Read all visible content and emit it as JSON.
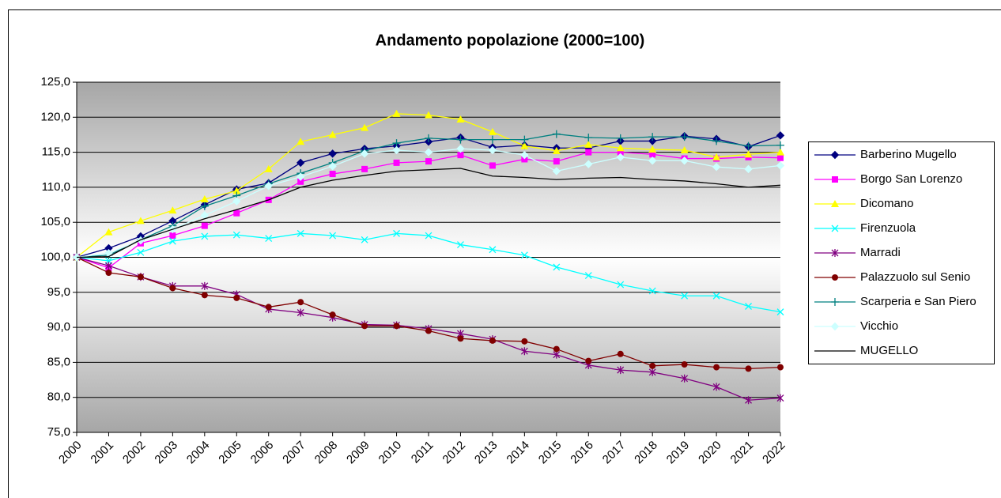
{
  "chart_data": {
    "type": "line",
    "title": "Andamento popolazione (2000=100)",
    "categories": [
      "2000",
      "2001",
      "2002",
      "2003",
      "2004",
      "2005",
      "2006",
      "2007",
      "2008",
      "2009",
      "2010",
      "2011",
      "2012",
      "2013",
      "2014",
      "2015",
      "2016",
      "2017",
      "2018",
      "2019",
      "2020",
      "2021",
      "2022"
    ],
    "ylim": [
      75,
      125
    ],
    "yticks": [
      {
        "value": 75,
        "label": "75,0"
      },
      {
        "value": 80,
        "label": "80,0"
      },
      {
        "value": 85,
        "label": "85,0"
      },
      {
        "value": 90,
        "label": "90,0"
      },
      {
        "value": 95,
        "label": "95,0"
      },
      {
        "value": 100,
        "label": "100,0"
      },
      {
        "value": 105,
        "label": "105,0"
      },
      {
        "value": 110,
        "label": "110,0"
      },
      {
        "value": 115,
        "label": "115,0"
      },
      {
        "value": 120,
        "label": "120,0"
      },
      {
        "value": 125,
        "label": "125,0"
      }
    ],
    "grid": true,
    "legend": "right",
    "series": [
      {
        "name": "Barberino Mugello",
        "color": "#000080",
        "marker": "diamond",
        "values": [
          100,
          101.3,
          103,
          105.2,
          107.5,
          109.7,
          110.6,
          113.5,
          114.8,
          115.5,
          115.9,
          116.5,
          117.1,
          115.7,
          116,
          115.6,
          115.6,
          116.6,
          116.6,
          117.3,
          116.9,
          115.8,
          117.4
        ]
      },
      {
        "name": "Borgo San Lorenzo",
        "color": "#ff00ff",
        "marker": "square",
        "values": [
          100,
          98.5,
          102,
          103.1,
          104.5,
          106.3,
          108.2,
          110.8,
          111.9,
          112.6,
          113.5,
          113.7,
          114.6,
          113.1,
          114,
          113.7,
          115,
          115,
          114.7,
          114.1,
          114.1,
          114.3,
          114.2
        ]
      },
      {
        "name": "Dicomano",
        "color": "#ffff00",
        "marker": "triangle",
        "values": [
          100,
          103.6,
          105.2,
          106.7,
          108.3,
          109.5,
          112.6,
          116.5,
          117.5,
          118.5,
          120.5,
          120.3,
          119.7,
          117.9,
          115.9,
          115.2,
          116.1,
          115.6,
          115.4,
          115.3,
          114.3,
          114.7,
          115
        ]
      },
      {
        "name": "Firenzuola",
        "color": "#00ffff",
        "marker": "x",
        "values": [
          100,
          99.5,
          100.7,
          102.3,
          103,
          103.2,
          102.7,
          103.4,
          103.1,
          102.5,
          103.4,
          103.1,
          101.8,
          101.1,
          100.3,
          98.6,
          97.4,
          96.1,
          95.2,
          94.5,
          94.5,
          93,
          92.2
        ]
      },
      {
        "name": "Marradi",
        "color": "#800080",
        "marker": "star",
        "values": [
          100,
          98.8,
          97.2,
          95.9,
          95.9,
          94.7,
          92.6,
          92.1,
          91.4,
          90.4,
          90.3,
          89.8,
          89.1,
          88.3,
          86.6,
          86.1,
          84.6,
          83.9,
          83.6,
          82.7,
          81.5,
          79.6,
          79.9
        ]
      },
      {
        "name": "Palazzuolo sul Senio",
        "color": "#800000",
        "marker": "circle",
        "values": [
          100,
          97.8,
          97.2,
          95.6,
          94.6,
          94.2,
          92.9,
          93.6,
          91.8,
          90.2,
          90.2,
          89.5,
          88.4,
          88.1,
          88,
          86.9,
          85.2,
          86.2,
          84.5,
          84.7,
          84.3,
          84.1,
          84.3
        ]
      },
      {
        "name": "Scarperia e San Piero",
        "color": "#008080",
        "marker": "plus",
        "values": [
          100,
          100.3,
          102.5,
          104.5,
          107.3,
          108.8,
          110.5,
          112,
          113.5,
          115.2,
          116.3,
          117,
          116.8,
          116.8,
          116.8,
          117.6,
          117.1,
          117,
          117.2,
          117.2,
          116.6,
          115.9,
          116
        ]
      },
      {
        "name": "Vicchio",
        "color": "#ccffff",
        "marker": "diamond",
        "values": [
          100,
          100.6,
          102.4,
          104,
          106,
          108,
          110.2,
          111.5,
          113,
          114.8,
          115.3,
          115,
          115.5,
          115.3,
          114.6,
          112.3,
          113.3,
          114.3,
          113.8,
          113.8,
          112.9,
          112.6,
          113.1
        ]
      },
      {
        "name": "MUGELLO",
        "color": "#000000",
        "marker": "none",
        "values": [
          100,
          100.1,
          102.5,
          104,
          105.5,
          106.8,
          108.2,
          110,
          111,
          111.7,
          112.3,
          112.5,
          112.7,
          111.6,
          111.4,
          111.1,
          111.3,
          111.4,
          111.1,
          110.9,
          110.5,
          110,
          110.3
        ]
      }
    ]
  }
}
